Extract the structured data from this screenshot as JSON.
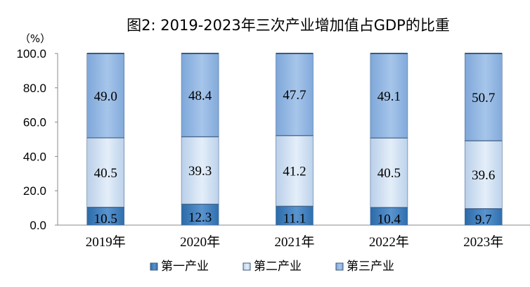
{
  "chart_data": {
    "type": "bar",
    "stacked": true,
    "title": "图2:  2019-2023年三次产业增加值占GDP的比重",
    "unit_label": "（%）",
    "categories": [
      "2019年",
      "2020年",
      "2021年",
      "2022年",
      "2023年"
    ],
    "series": [
      {
        "name": "第一产业",
        "values": [
          10.5,
          12.3,
          11.1,
          10.4,
          9.7
        ],
        "color": "#3a78b5",
        "labels": [
          "10.5",
          "12.3",
          "11.1",
          "10.4",
          "9.7"
        ]
      },
      {
        "name": "第二产业",
        "values": [
          40.5,
          39.3,
          41.2,
          40.5,
          39.6
        ],
        "color": "#c5d9ef",
        "labels": [
          "40.5",
          "39.3",
          "41.2",
          "40.5",
          "39.6"
        ]
      },
      {
        "name": "第三产业",
        "values": [
          49.0,
          48.4,
          47.7,
          49.1,
          50.7
        ],
        "color": "#8fb4e0",
        "labels": [
          "49.0",
          "48.4",
          "47.7",
          "49.1",
          "50.7"
        ]
      }
    ],
    "ylim": [
      0,
      100
    ],
    "yticks": [
      "0.0",
      "20.0",
      "40.0",
      "60.0",
      "80.0",
      "100.0"
    ],
    "legend_position": "bottom",
    "grid": false
  }
}
